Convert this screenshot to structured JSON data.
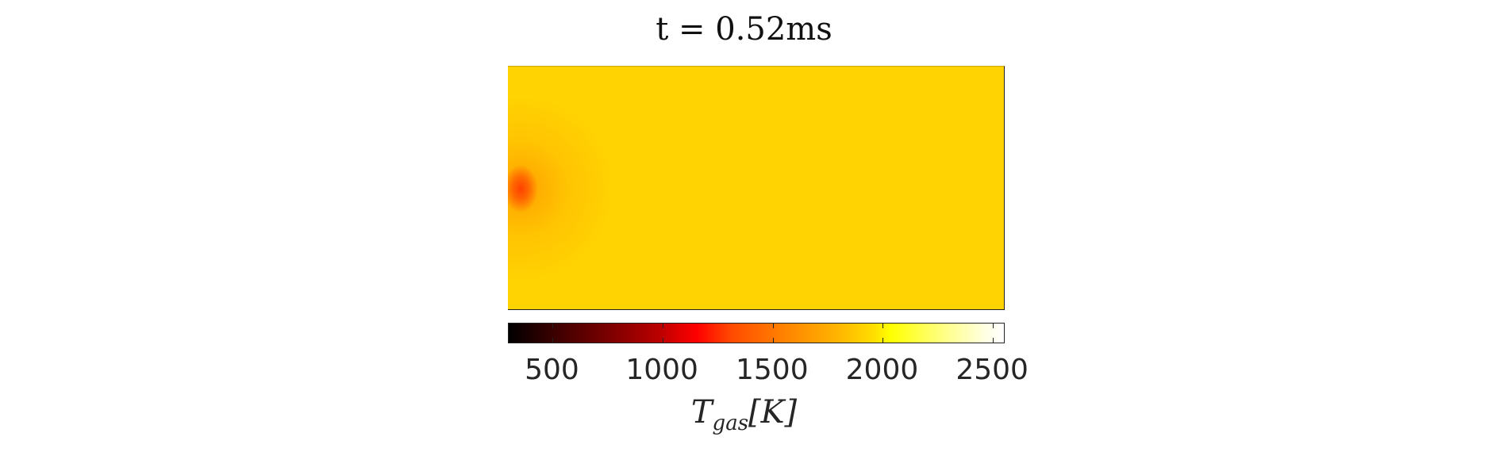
{
  "chart_data": {
    "type": "heatmap",
    "title": "t = 0.52ms",
    "colorbar": {
      "label_main": "T",
      "label_sub": "gas",
      "label_unit": "[K]",
      "ticks": [
        500,
        1000,
        1500,
        2000,
        2500
      ],
      "tick_labels": [
        "500",
        "1000",
        "1500",
        "2000",
        "2500"
      ],
      "range": [
        300,
        2550
      ],
      "colormap": "hot"
    },
    "field": {
      "background_value": 2150,
      "hotspot_location": "left-center",
      "hotspot_value": 1550
    },
    "colors": {
      "background": "#ffd302",
      "hotspot": "#ff4a00"
    }
  }
}
